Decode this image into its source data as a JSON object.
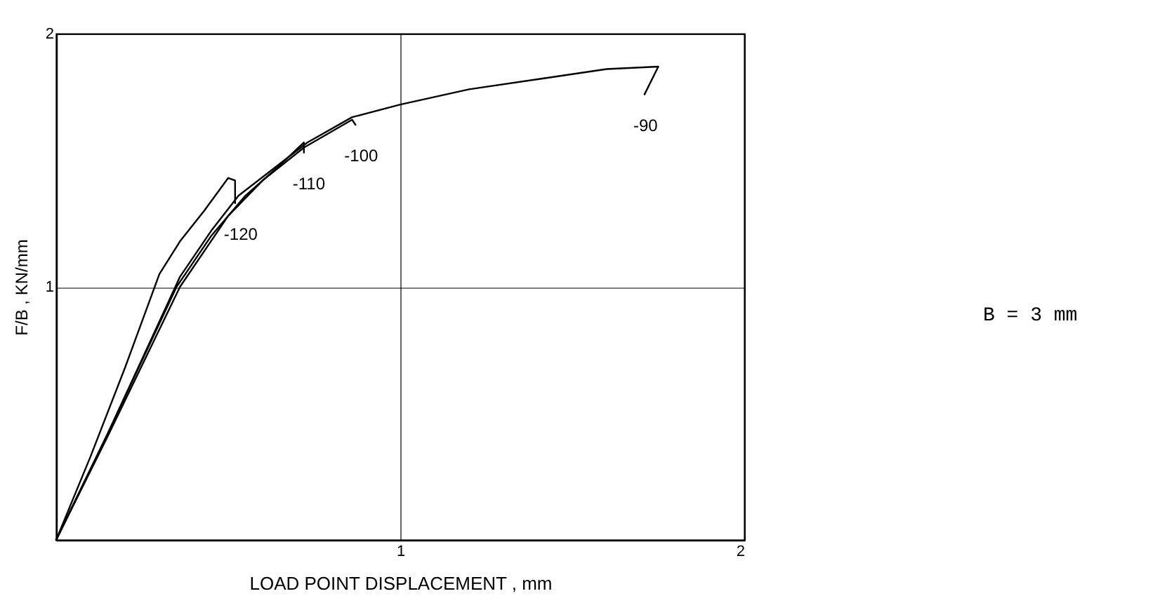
{
  "chart_data": {
    "type": "line",
    "xlabel": "LOAD POINT DISPLACEMENT , mm",
    "ylabel": "F/B , KN/mm",
    "xlim": [
      0,
      2
    ],
    "ylim": [
      0,
      2
    ],
    "xticks": [
      1,
      2
    ],
    "yticks": [
      1,
      2
    ],
    "grid": true,
    "annotations": [
      "B =   3 mm"
    ],
    "series": [
      {
        "name": "-90",
        "color": "#000000",
        "x": [
          0,
          0.15,
          0.36,
          0.45,
          0.53,
          0.73,
          0.86,
          1.0,
          1.2,
          1.4,
          1.6,
          1.75,
          1.71
        ],
        "values": [
          0,
          0.42,
          1.04,
          1.22,
          1.36,
          1.57,
          1.67,
          1.72,
          1.78,
          1.82,
          1.86,
          1.87,
          1.76
        ]
      },
      {
        "name": "-100",
        "color": "#000000",
        "x": [
          0,
          0.15,
          0.36,
          0.5,
          0.6,
          0.72,
          0.86,
          0.87
        ],
        "values": [
          0,
          0.41,
          1.0,
          1.28,
          1.42,
          1.55,
          1.66,
          1.64
        ]
      },
      {
        "name": "-110",
        "color": "#000000",
        "x": [
          0,
          0.15,
          0.35,
          0.45,
          0.55,
          0.65,
          0.72,
          0.72
        ],
        "values": [
          0,
          0.42,
          1.0,
          1.2,
          1.36,
          1.48,
          1.57,
          1.53
        ]
      },
      {
        "name": "-120",
        "color": "#000000",
        "x": [
          0,
          0.1,
          0.2,
          0.3,
          0.36,
          0.43,
          0.5,
          0.52,
          0.52
        ],
        "values": [
          0,
          0.33,
          0.68,
          1.05,
          1.18,
          1.3,
          1.43,
          1.42,
          1.33
        ]
      }
    ]
  }
}
